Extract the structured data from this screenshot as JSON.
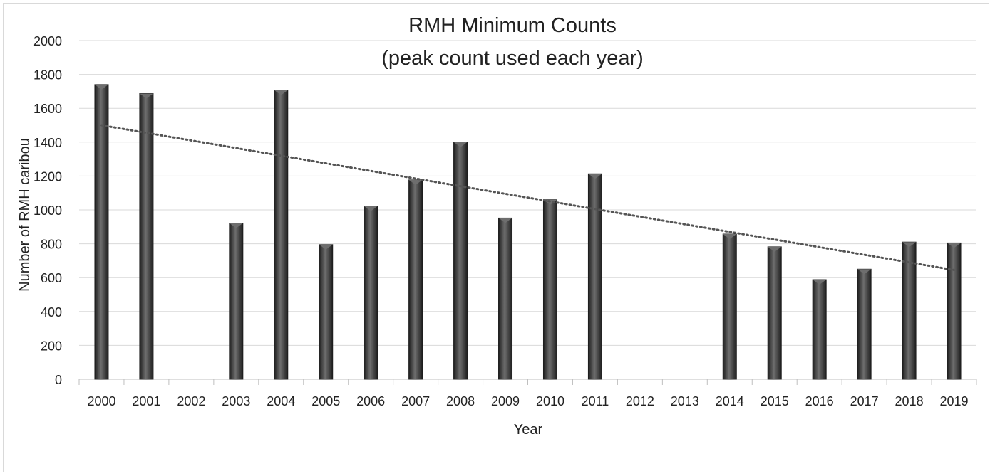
{
  "chart_data": {
    "type": "bar",
    "title": "RMH Minimum Counts",
    "subtitle": "(peak count used each year)",
    "xlabel": "Year",
    "ylabel": "Number of RMH caribou",
    "ylim": [
      0,
      2000
    ],
    "yticks": [
      0,
      200,
      400,
      600,
      800,
      1000,
      1200,
      1400,
      1600,
      1800,
      2000
    ],
    "grid": true,
    "legend": "none",
    "categories": [
      "2000",
      "2001",
      "2002",
      "2003",
      "2004",
      "2005",
      "2006",
      "2007",
      "2008",
      "2009",
      "2010",
      "2011",
      "2012",
      "2013",
      "2014",
      "2015",
      "2016",
      "2017",
      "2018",
      "2019"
    ],
    "values": [
      1740,
      1687,
      null,
      922,
      1707,
      795,
      1022,
      1177,
      1400,
      952,
      1060,
      1213,
      null,
      null,
      857,
      782,
      588,
      650,
      810,
      805
    ],
    "trendline": {
      "type": "linear",
      "style": "dotted",
      "start": [
        2000,
        1500
      ],
      "end": [
        2019,
        645
      ]
    },
    "colors": {
      "bar": "#3f3f3f",
      "bar_dark": "#1e1e1e",
      "bar_light": "#6e6e6e",
      "trend": "#555555",
      "grid": "#d9d9d9",
      "axis": "#bfbfbf"
    }
  }
}
